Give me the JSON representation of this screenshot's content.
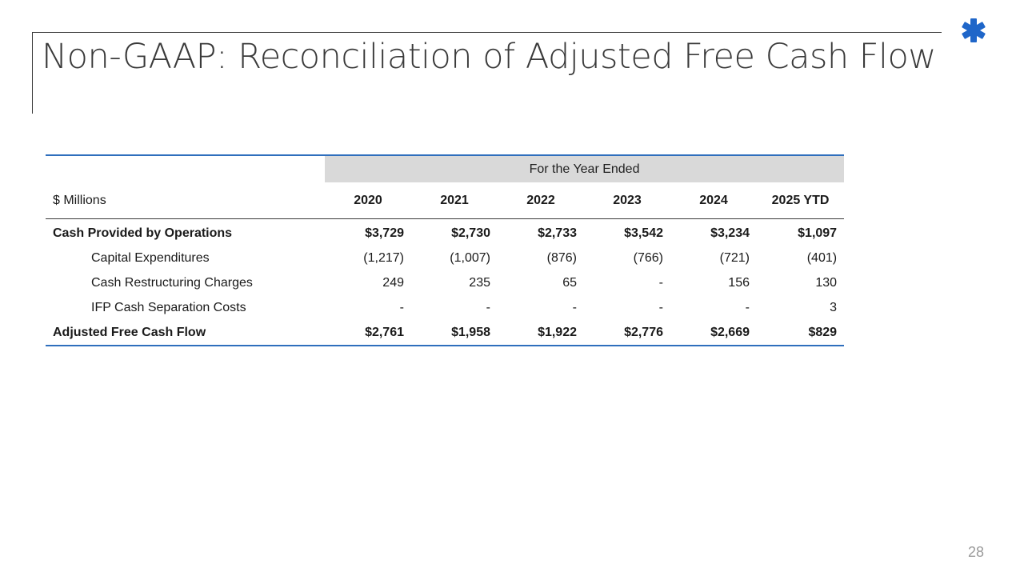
{
  "slide": {
    "title": "Non-GAAP: Reconciliation of Adjusted Free Cash Flow",
    "page_number": "28",
    "logo_icon": "asterisk-logo-icon",
    "accent_color": "#1f66c9"
  },
  "table": {
    "group_header": "For the Year Ended",
    "unit_label": "$ Millions",
    "years": [
      "2020",
      "2021",
      "2022",
      "2023",
      "2024",
      "2025 YTD"
    ],
    "rows": [
      {
        "label": "Cash Provided by Operations",
        "values": [
          "$3,729",
          "$2,730",
          "$2,733",
          "$3,542",
          "$3,234",
          "$1,097"
        ]
      },
      {
        "label": "Capital Expenditures",
        "values": [
          "(1,217)",
          "(1,007)",
          "(876)",
          "(766)",
          "(721)",
          "(401)"
        ]
      },
      {
        "label": "Cash Restructuring Charges",
        "values": [
          "249",
          "235",
          "65",
          "-",
          "156",
          "130"
        ]
      },
      {
        "label": "IFP Cash Separation Costs",
        "values": [
          "-",
          "-",
          "-",
          "-",
          "-",
          "3"
        ]
      },
      {
        "label": "Adjusted Free Cash Flow",
        "values": [
          "$2,761",
          "$1,958",
          "$1,922",
          "$2,776",
          "$2,669",
          "$829"
        ]
      }
    ]
  }
}
